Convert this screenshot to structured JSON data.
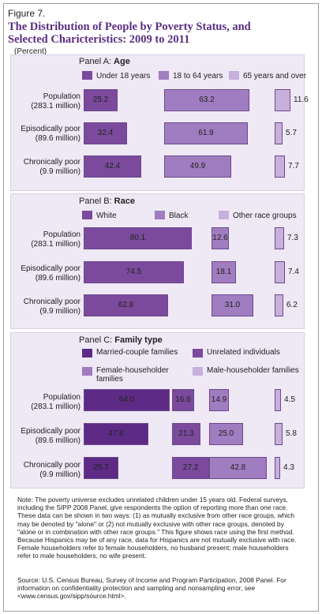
{
  "figure_label": "Figure 7.",
  "title": "The Distribution of People by Poverty Status, and Selected Charicteristics: 2009 to 2011",
  "unit": "(Percent)",
  "colors": {
    "c1": "#7b4a9c",
    "c2": "#a07cc0",
    "c3": "#c7b0dc",
    "c4": "#5d2b86",
    "panel_bg": "#efe8f5"
  },
  "row_labels": [
    [
      "Population",
      "(283.1 million)"
    ],
    [
      "Episodically poor",
      "(89.6 million)"
    ],
    [
      "Chronically poor",
      "(9.9 million)"
    ]
  ],
  "chart_data": [
    {
      "type": "bar",
      "panel": "Panel A:",
      "panel_name": "Age",
      "categories": [
        "Population (283.1 million)",
        "Episodically poor (89.6 million)",
        "Chronically poor (9.9 million)"
      ],
      "series": [
        {
          "name": "Under 18 years",
          "values": [
            25.2,
            32.4,
            42.4
          ]
        },
        {
          "name": "18 to 64 years",
          "values": [
            63.2,
            61.9,
            49.9
          ]
        },
        {
          "name": "65 years and over",
          "values": [
            11.6,
            5.7,
            7.7
          ]
        }
      ],
      "value_labels": [
        [
          "25.2",
          "63.2",
          "11.6"
        ],
        [
          "32.4",
          "61.9",
          "5.7"
        ],
        [
          "42.4",
          "49.9",
          "7.7"
        ]
      ]
    },
    {
      "type": "bar",
      "panel": "Panel B:",
      "panel_name": "Race",
      "categories": [
        "Population (283.1 million)",
        "Episodically poor (89.6 million)",
        "Chronically poor (9.9 million)"
      ],
      "series": [
        {
          "name": "White",
          "values": [
            80.1,
            74.5,
            62.8
          ]
        },
        {
          "name": "Black",
          "values": [
            12.6,
            18.1,
            31.0
          ]
        },
        {
          "name": "Other race groups",
          "values": [
            7.3,
            7.4,
            6.2
          ]
        }
      ],
      "value_labels": [
        [
          "80.1",
          "12.6",
          "7.3"
        ],
        [
          "74.5",
          "18.1",
          "7.4"
        ],
        [
          "62.8",
          "31.0",
          "6.2"
        ]
      ]
    },
    {
      "type": "bar",
      "panel": "Panel C:",
      "panel_name": "Family type",
      "categories": [
        "Population (283.1 million)",
        "Episodically poor (89.6 million)",
        "Chronically poor (9.9 million)"
      ],
      "series": [
        {
          "name": "Married-couple families",
          "values": [
            64.0,
            47.8,
            25.7
          ]
        },
        {
          "name": "Unrelated individuals",
          "values": [
            16.6,
            21.3,
            27.2
          ]
        },
        {
          "name": "Female-householder families",
          "values": [
            14.9,
            25.0,
            42.8
          ]
        },
        {
          "name": "Male-householder families",
          "values": [
            4.5,
            5.8,
            4.3
          ]
        }
      ],
      "value_labels": [
        [
          "64.0",
          "16.6",
          "14.9",
          "4.5"
        ],
        [
          "47.8",
          "21.3",
          "25.0",
          "5.8"
        ],
        [
          "25.7",
          "27.2",
          "42.8",
          "4.3"
        ]
      ]
    }
  ],
  "note": "Note: The poverty universe excludes unrelated children under 15  years old. Federal surveys, including the SIPP 2008 Panel, give respondents the option of reporting more than one race. These data can be shown in two ways: (1) as mutually exclusive from other race groups, which may be denoted by \"alone\" or (2) not mutually exclusive with other race groups, denoted by \"alone or in combination with other race groups.\" This figure shows race using the first method. Because Hispanics may be of any race, data for Hispanics are not mutually exclusive with race. Female householders refer to female householders, no husband present; male householders refer to male householders, no wife present.",
  "source": "Source: U.S. Census Bureau, Survey of Income and Program Participation, 2008 Panel. For information on confidentiality protection and sampling and nonsampling error, see <www.census.gov/sipp/source.html>."
}
